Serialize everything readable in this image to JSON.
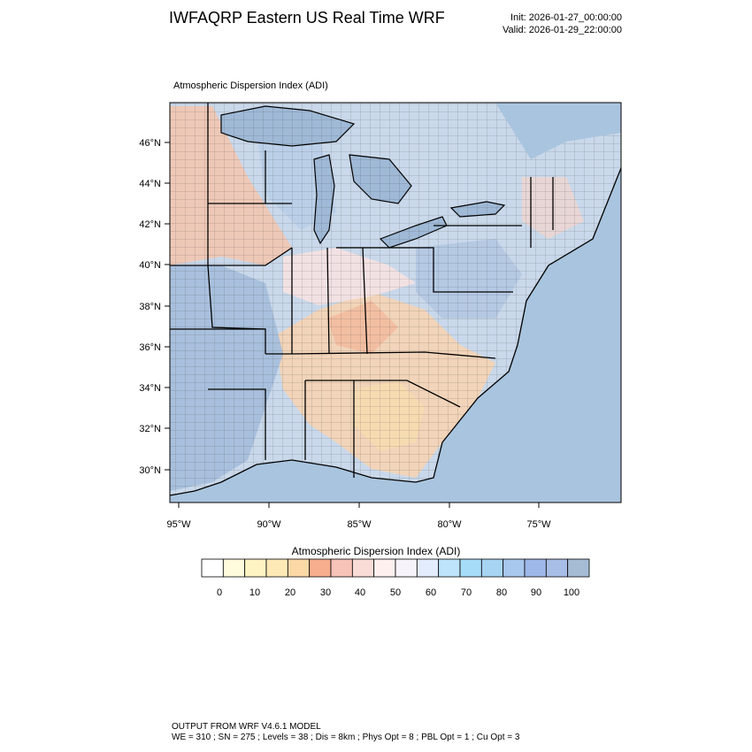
{
  "header": {
    "title": "IWFAQRP Eastern US Real Time WRF",
    "init": "Init: 2026-01-27_00:00:00",
    "valid": "Valid: 2026-01-29_22:00:00"
  },
  "plot": {
    "title": "Atmospheric Dispersion Index   (ADI)",
    "lat_ticks": [
      "46°N",
      "44°N",
      "42°N",
      "40°N",
      "38°N",
      "36°N",
      "34°N",
      "32°N",
      "30°N"
    ],
    "lon_ticks": [
      "95°W",
      "90°W",
      "85°W",
      "80°W",
      "75°W"
    ]
  },
  "colorbar": {
    "title": "Atmospheric Dispersion Index  (ADI)",
    "labels": [
      "0",
      "10",
      "20",
      "30",
      "40",
      "50",
      "60",
      "70",
      "80",
      "90",
      "100"
    ],
    "colors": [
      "#ffffff",
      "#fffbdc",
      "#fff3c4",
      "#fde9b6",
      "#fcd8a6",
      "#f6ae8e",
      "#f7c2b8",
      "#fadcd6",
      "#fdf0ee",
      "#f7f3fa",
      "#e2ecfc",
      "#bde4fb",
      "#a7dcf8",
      "#a8d4f3",
      "#a9c8ee",
      "#9fb8ea",
      "#a9bee6",
      "#a5bcd4"
    ]
  },
  "footer": {
    "line1": "OUTPUT FROM WRF V4.6.1 MODEL",
    "line2": "WE = 310 ; SN = 275 ; Levels = 38 ; Dis = 8km ; Phys Opt = 8 ; PBL Opt = 1 ; Cu Opt = 3"
  }
}
